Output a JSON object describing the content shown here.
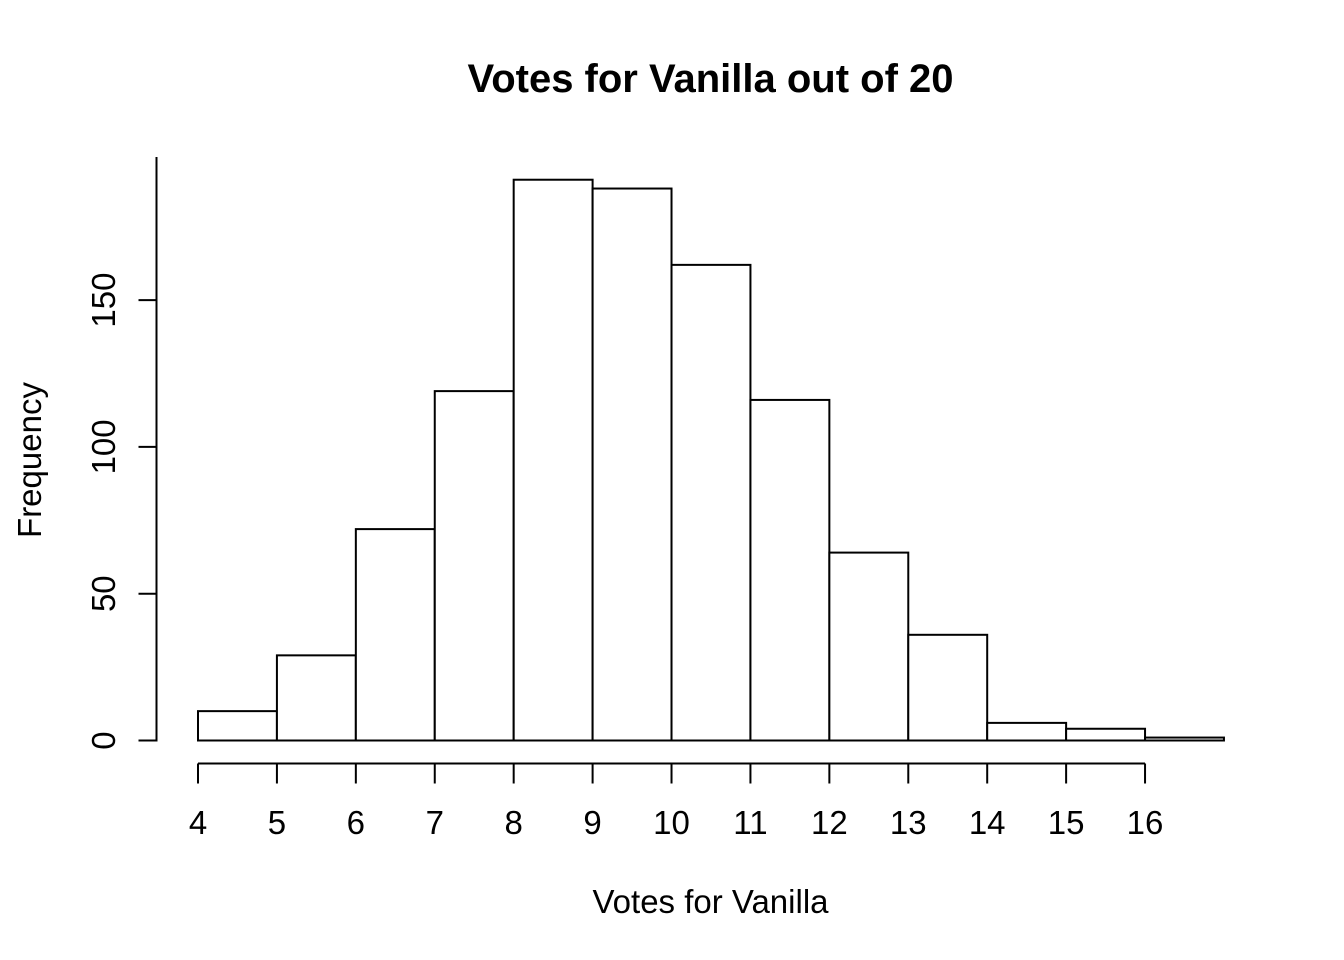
{
  "chart_data": {
    "type": "bar",
    "subtype": "histogram",
    "title": "Votes for Vanilla out of 20",
    "xlabel": "Votes for Vanilla",
    "ylabel": "Frequency",
    "bin_edges": [
      4,
      5,
      6,
      7,
      8,
      9,
      10,
      11,
      12,
      13,
      14,
      15,
      16,
      17
    ],
    "values": [
      10,
      29,
      72,
      119,
      191,
      188,
      162,
      116,
      64,
      36,
      6,
      4,
      1
    ],
    "x_ticks": [
      "4",
      "5",
      "6",
      "7",
      "8",
      "9",
      "10",
      "11",
      "12",
      "13",
      "14",
      "15",
      "16"
    ],
    "x_tick_values": [
      4,
      5,
      6,
      7,
      8,
      9,
      10,
      11,
      12,
      13,
      14,
      15,
      16
    ],
    "y_ticks": [
      "0",
      "50",
      "100",
      "150"
    ],
    "y_tick_values": [
      0,
      50,
      100,
      150
    ],
    "xlim": [
      3.48,
      17.52
    ],
    "ylim": [
      0,
      198.6
    ],
    "grid": false,
    "legend": null,
    "colors": {
      "background": "#ffffff",
      "bar_fill": "#ffffff",
      "bar_border": "#000000",
      "axis": "#000000",
      "text": "#000000"
    }
  }
}
